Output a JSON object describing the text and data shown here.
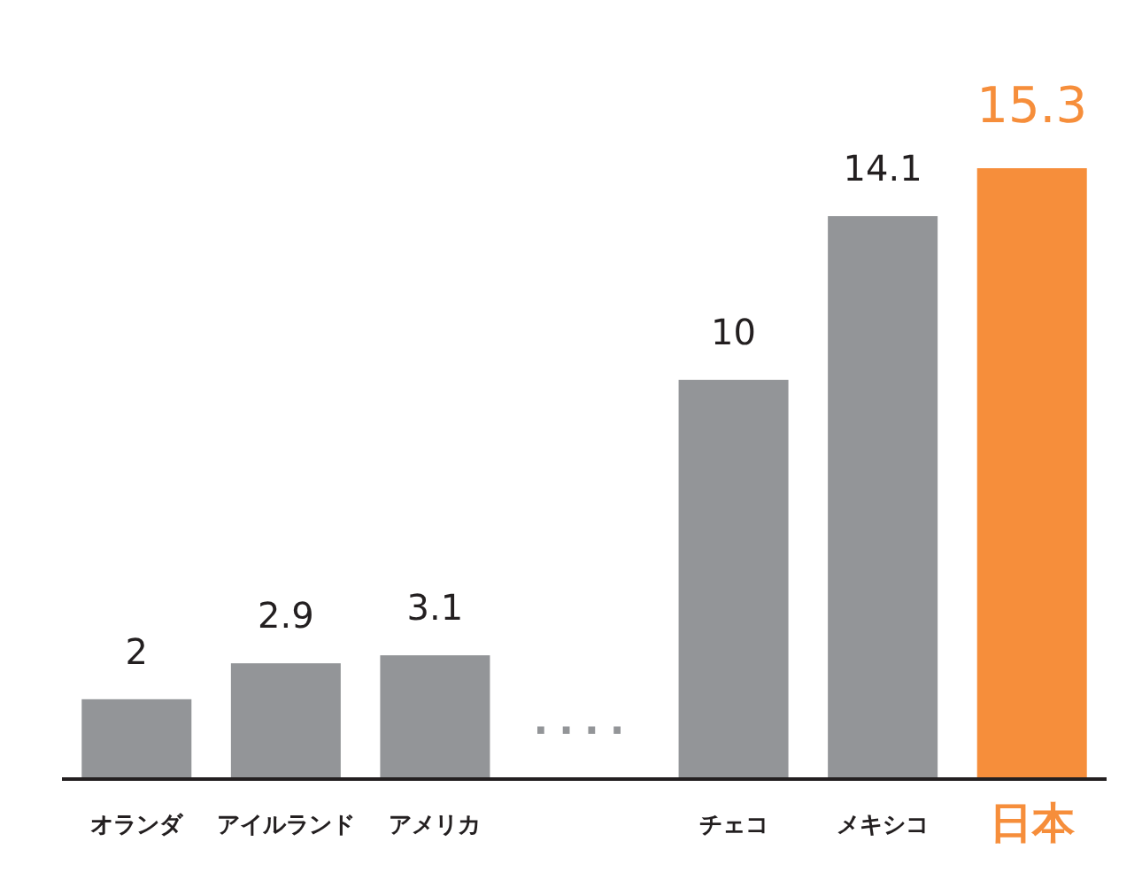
{
  "chart_data": {
    "type": "bar",
    "categories": [
      "オランダ",
      "アイルランド",
      "アメリカ",
      null,
      "チェコ",
      "メキシコ",
      "日本"
    ],
    "values": [
      2,
      2.9,
      3.1,
      null,
      10,
      14.1,
      15.3
    ],
    "colors": [
      "#939598",
      "#939598",
      "#939598",
      "#939598",
      "#939598",
      "#939598",
      "#f68e3b"
    ],
    "data_labels": true,
    "annotations": [
      "····"
    ]
  }
}
